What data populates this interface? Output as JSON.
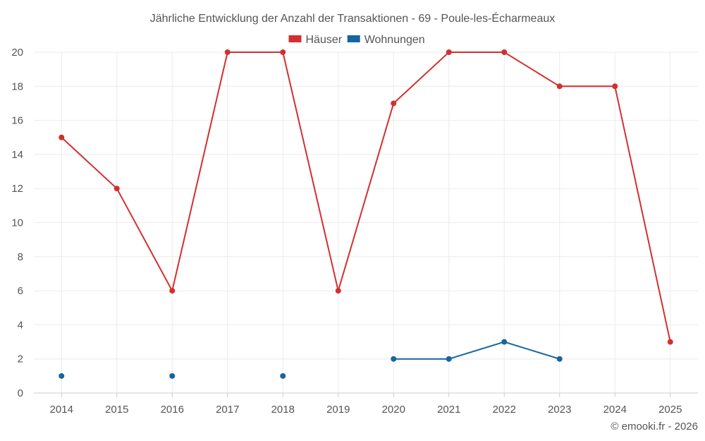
{
  "chart_data": {
    "type": "line",
    "title": "Jährliche Entwicklung der Anzahl der Transaktionen - 69 - Poule-les-Écharmeaux",
    "categories": [
      "2014",
      "2015",
      "2016",
      "2017",
      "2018",
      "2019",
      "2020",
      "2021",
      "2022",
      "2023",
      "2024",
      "2025"
    ],
    "ylim": [
      0,
      20
    ],
    "yticks": [
      0,
      2,
      4,
      6,
      8,
      10,
      12,
      14,
      16,
      18,
      20
    ],
    "grid": true,
    "legend_position": "top-center",
    "series": [
      {
        "name": "Häuser",
        "color": "#d32f2f",
        "values": [
          15,
          12,
          6,
          20,
          20,
          6,
          17,
          20,
          20,
          18,
          18,
          3
        ]
      },
      {
        "name": "Wohnungen",
        "color": "#1565a0",
        "values": [
          1,
          null,
          1,
          null,
          1,
          null,
          2,
          2,
          3,
          2,
          null,
          null
        ]
      }
    ],
    "credit": "© emooki.fr - 2026"
  }
}
